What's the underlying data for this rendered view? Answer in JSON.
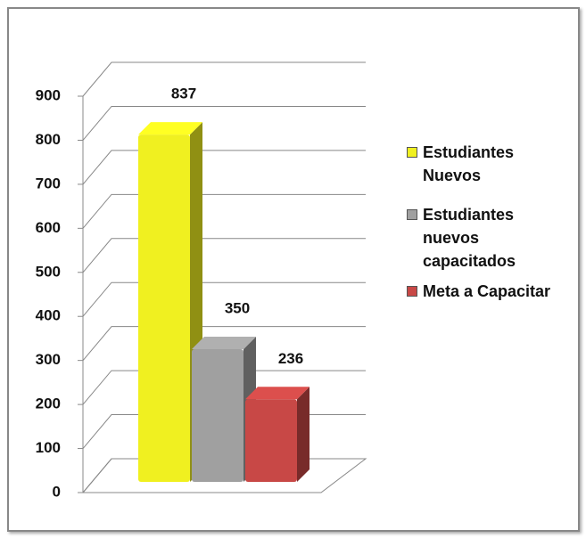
{
  "chart_data": {
    "type": "bar3d",
    "series": [
      {
        "name": "Estudiantes Nuevos",
        "color": "#f0f020",
        "values": [
          837
        ]
      },
      {
        "name": "Estudiantes nuevos capacitados",
        "color": "#a0a0a0",
        "values": [
          350
        ]
      },
      {
        "name": "Meta a Capacitar",
        "color": "#c84846",
        "values": [
          236
        ]
      }
    ],
    "ylim": [
      0,
      900
    ],
    "yticks": [
      0,
      100,
      200,
      300,
      400,
      500,
      600,
      700,
      800,
      900
    ],
    "grid": true,
    "legend": "right"
  }
}
